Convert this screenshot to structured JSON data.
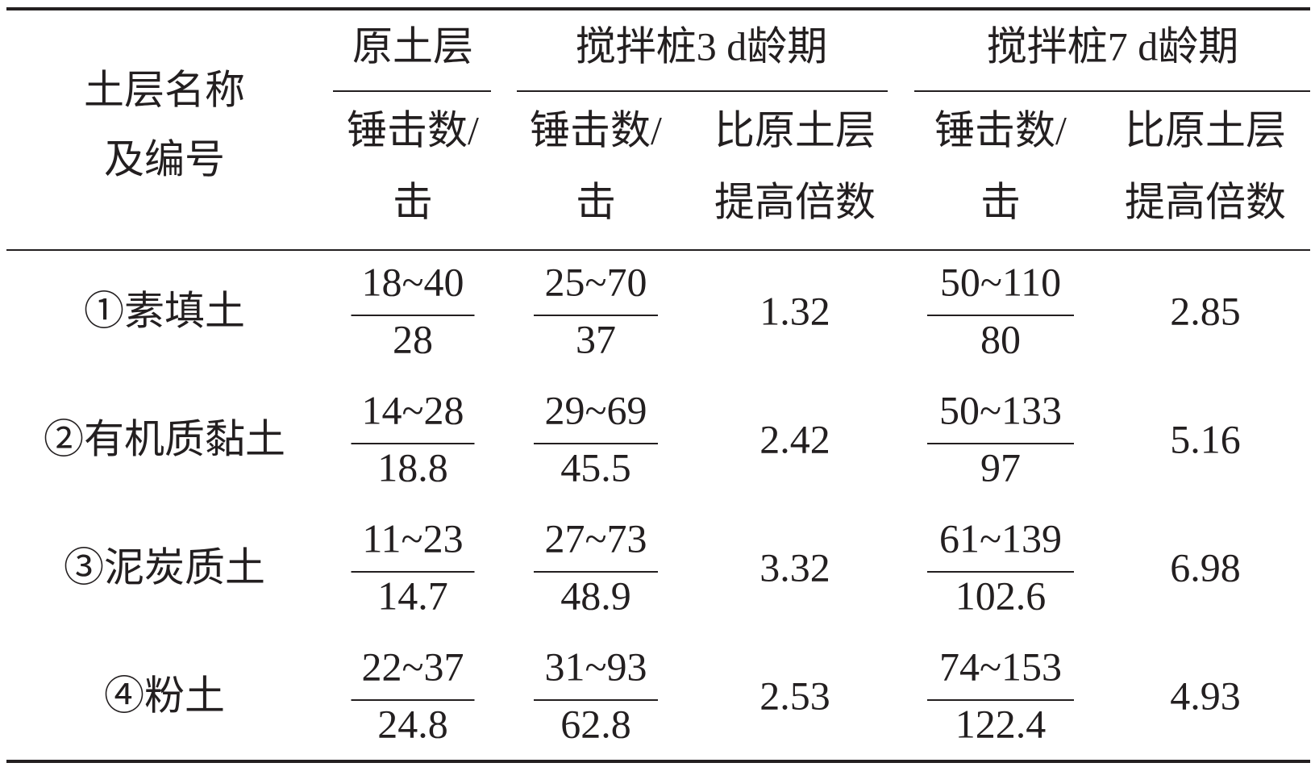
{
  "table": {
    "header": {
      "name": [
        "土层名称",
        "及编号"
      ],
      "groups": [
        "原土层",
        "搅拌桩3 d龄期",
        "搅拌桩7 d龄期"
      ],
      "columns": [
        [
          "锤击数/",
          "击"
        ],
        [
          "锤击数/",
          "击"
        ],
        [
          "比原土层",
          "提高倍数"
        ],
        [
          "锤击数/",
          "击"
        ],
        [
          "比原土层",
          "提高倍数"
        ]
      ]
    },
    "rows": [
      {
        "name": "①素填土",
        "original": {
          "range": "18~40",
          "mean": 28
        },
        "pile3d": {
          "range": "25~70",
          "mean": 37
        },
        "ratio3d": 1.32,
        "pile7d": {
          "range": "50~110",
          "mean": 80
        },
        "ratio7d": 2.85
      },
      {
        "name": "②有机质黏土",
        "original": {
          "range": "14~28",
          "mean": 18.8
        },
        "pile3d": {
          "range": "29~69",
          "mean": 45.5
        },
        "ratio3d": 2.42,
        "pile7d": {
          "range": "50~133",
          "mean": 97
        },
        "ratio7d": 5.16
      },
      {
        "name": "③泥炭质土",
        "original": {
          "range": "11~23",
          "mean": 14.7
        },
        "pile3d": {
          "range": "27~73",
          "mean": 48.9
        },
        "ratio3d": 3.32,
        "pile7d": {
          "range": "61~139",
          "mean": 102.6
        },
        "ratio7d": 6.98
      },
      {
        "name": "④粉土",
        "original": {
          "range": "22~37",
          "mean": 24.8
        },
        "pile3d": {
          "range": "31~93",
          "mean": 62.8
        },
        "ratio3d": 2.53,
        "pile7d": {
          "range": "74~153",
          "mean": 122.4
        },
        "ratio7d": 4.93
      }
    ]
  }
}
